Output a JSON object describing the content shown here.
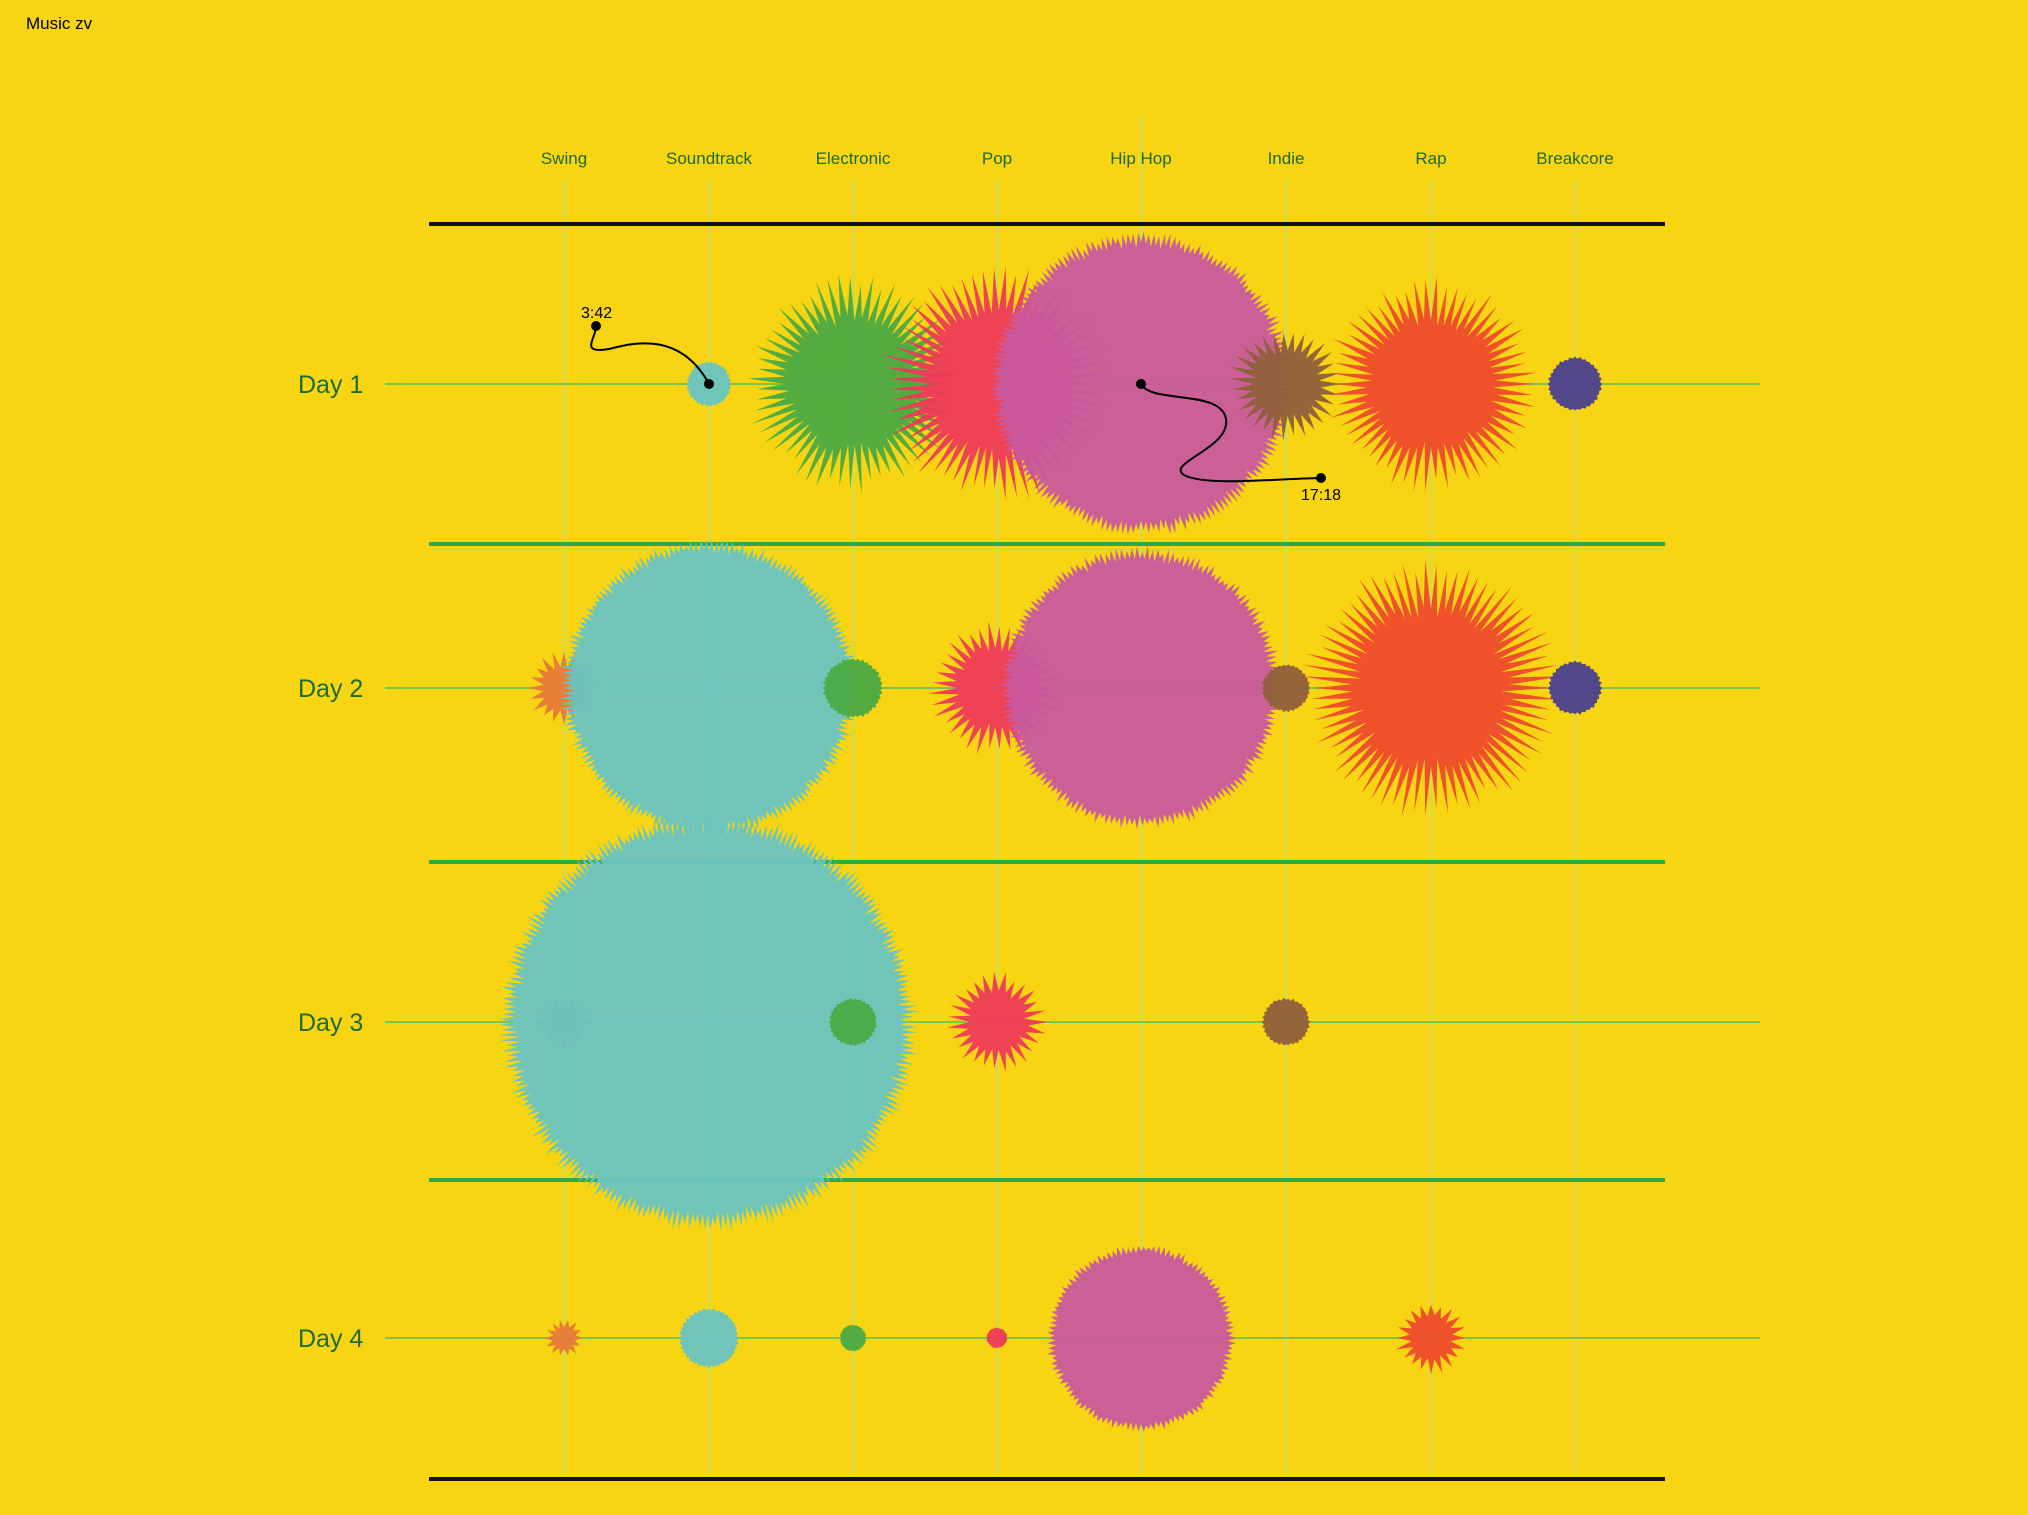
{
  "page": {
    "title": "Music zv"
  },
  "colors": {
    "background": "#F7D512",
    "column_line": "#D7DA45",
    "row_line": "#7FC44A",
    "separator": "#2EA84A",
    "border": "#111111",
    "label": "#1E6A34"
  },
  "chart_data": {
    "type": "bubble",
    "title": "",
    "genres": [
      {
        "name": "Swing",
        "color": "#E87A3A",
        "shape": "spiky"
      },
      {
        "name": "Soundtrack",
        "color": "#68C4C2",
        "shape": "frayed"
      },
      {
        "name": "Electronic",
        "color": "#4BAA45",
        "shape": "spiky"
      },
      {
        "name": "Pop",
        "color": "#EE3A5A",
        "shape": "spiky"
      },
      {
        "name": "Hip Hop",
        "color": "#C85A9E",
        "shape": "frayed"
      },
      {
        "name": "Indie",
        "color": "#8E5F3C",
        "shape": "spiky"
      },
      {
        "name": "Rap",
        "color": "#EE4A2C",
        "shape": "spiky"
      },
      {
        "name": "Breakcore",
        "color": "#4A4090",
        "shape": "frayed"
      }
    ],
    "days": [
      "Day 1",
      "Day 2",
      "Day 3",
      "Day 4"
    ],
    "values": [
      [
        0,
        0.15,
        0.72,
        0.78,
        1.0,
        0.38,
        0.71,
        0.18
      ],
      [
        0.25,
        0.98,
        0.2,
        0.45,
        0.93,
        0.16,
        0.86,
        0.18
      ],
      [
        0.2,
        1.38,
        0.16,
        0.33,
        0,
        0.16,
        0,
        0
      ],
      [
        0.13,
        0.2,
        0.09,
        0.07,
        0.62,
        0,
        0.24,
        0
      ]
    ],
    "annotations": [
      {
        "label": "3:42",
        "day": "Day 1",
        "genre": "Soundtrack"
      },
      {
        "label": "17:18",
        "day": "Day 1",
        "genre": "Hip Hop"
      }
    ]
  }
}
